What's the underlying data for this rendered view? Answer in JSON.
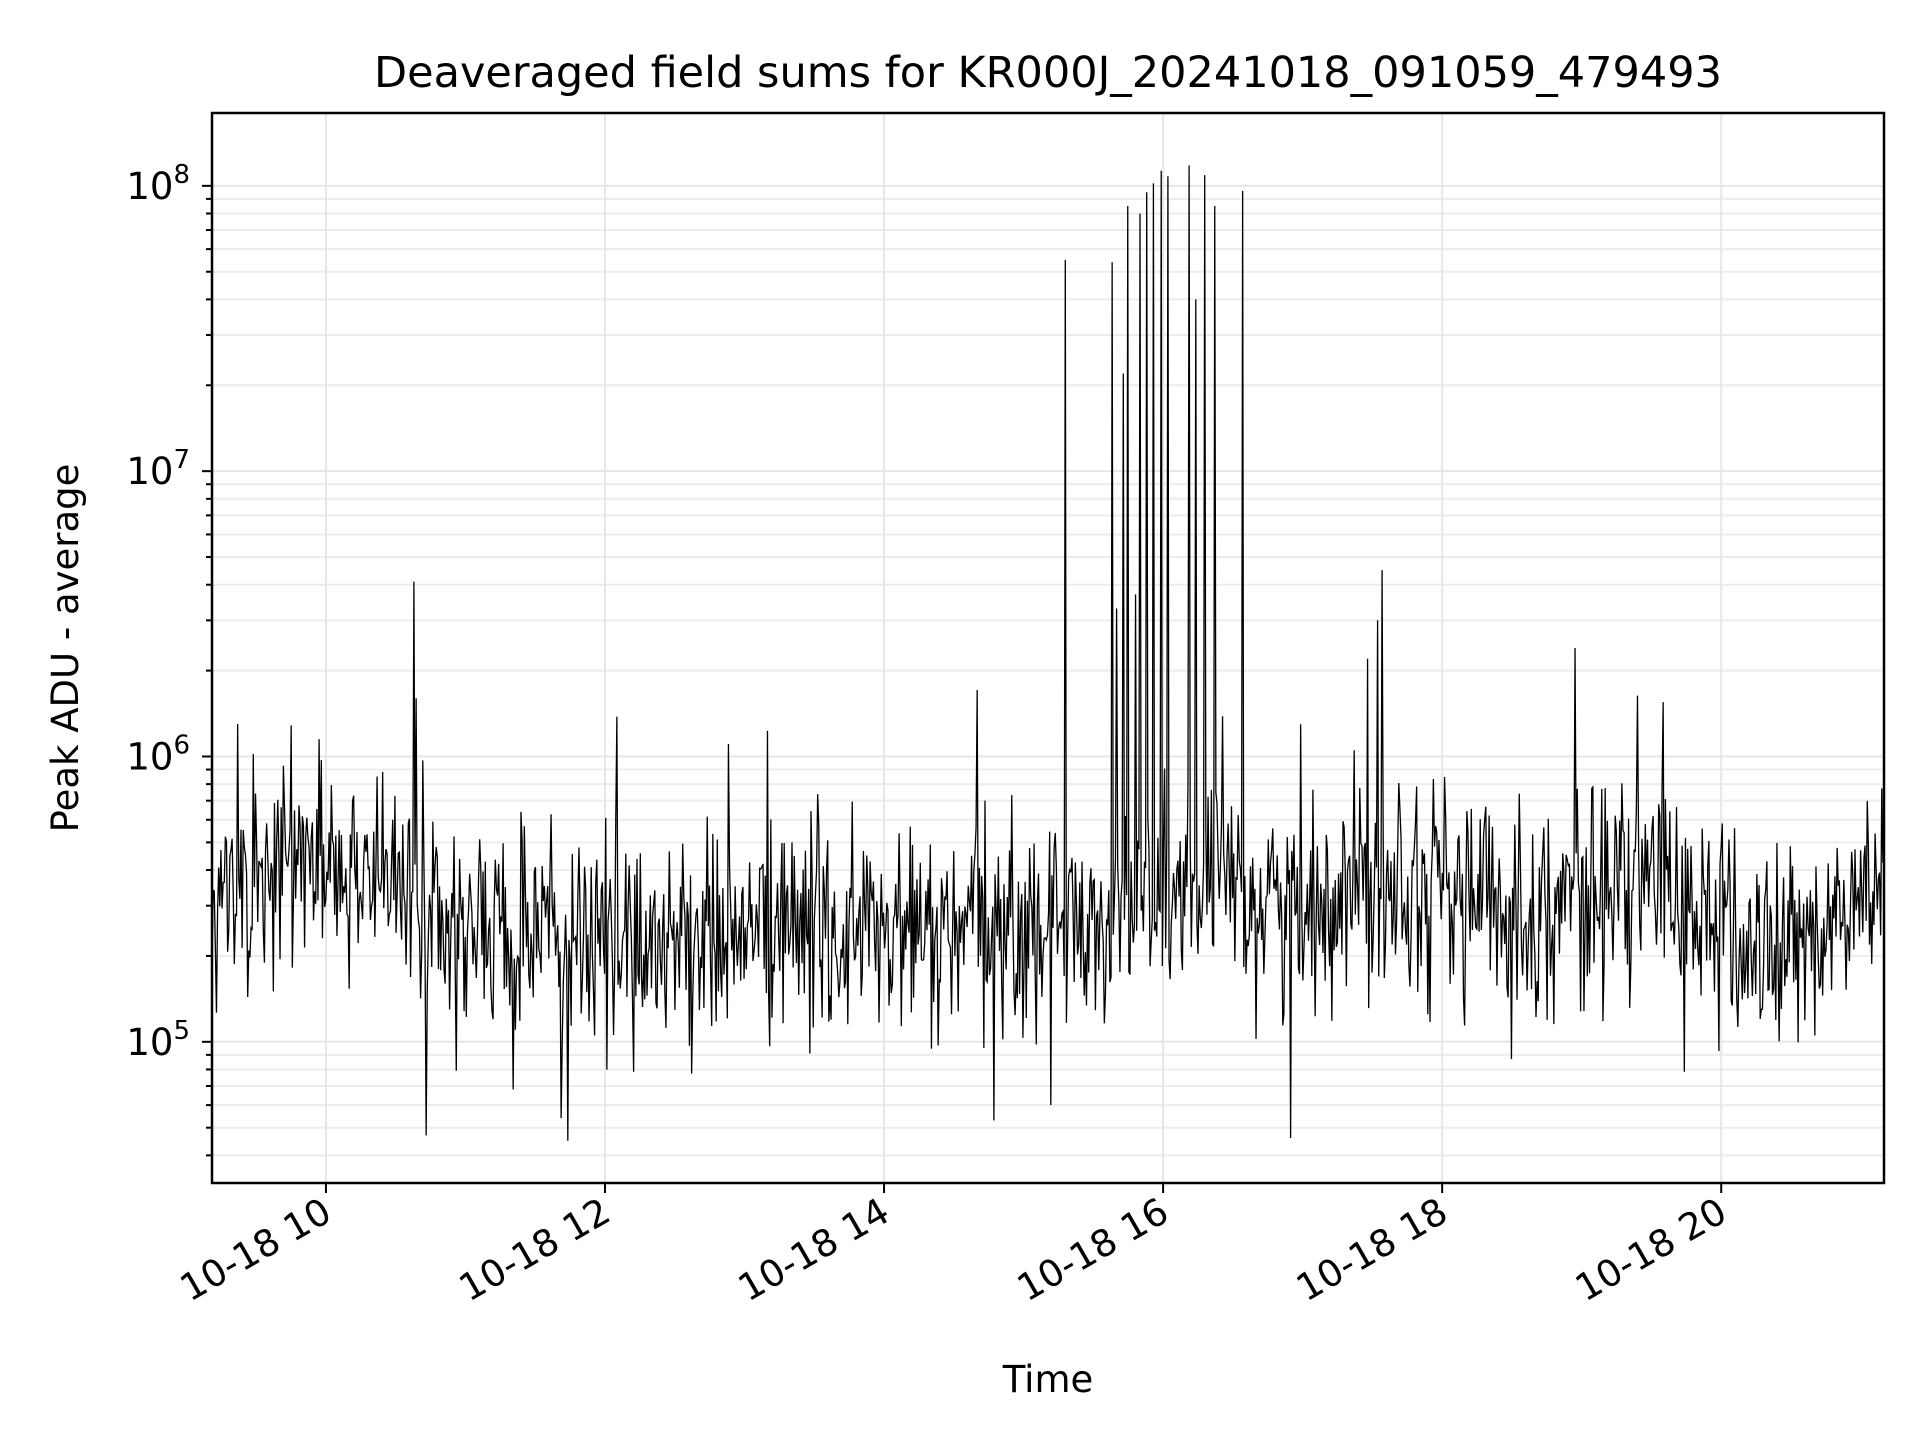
{
  "chart_data": {
    "type": "line",
    "title": "Deaveraged field sums for KR000J_20241018_091059_479493",
    "xlabel": "Time",
    "ylabel": "Peak ADU - average",
    "y_scale": "log",
    "grid": true,
    "grid_minor": true,
    "xlim": [
      "2024-10-18 09:11",
      "2024-10-18 21:10"
    ],
    "ylim": [
      32000,
      180000000
    ],
    "x_ticks": [
      {
        "value": "2024-10-18 10:00",
        "label": "10-18 10"
      },
      {
        "value": "2024-10-18 12:00",
        "label": "10-18 12"
      },
      {
        "value": "2024-10-18 14:00",
        "label": "10-18 14"
      },
      {
        "value": "2024-10-18 16:00",
        "label": "10-18 16"
      },
      {
        "value": "2024-10-18 18:00",
        "label": "10-18 18"
      },
      {
        "value": "2024-10-18 20:00",
        "label": "10-18 20"
      }
    ],
    "y_ticks": [
      {
        "value": 100000,
        "base": "10",
        "exp": "5"
      },
      {
        "value": 1000000,
        "base": "10",
        "exp": "6"
      },
      {
        "value": 10000000,
        "base": "10",
        "exp": "7"
      },
      {
        "value": 100000000,
        "base": "10",
        "exp": "8"
      }
    ],
    "line_color": "#000000",
    "series": [
      {
        "note_on_values": "values in ADU; baseline noise envelope follows this profile, spikes listed explicitly",
        "baseline_profile": {
          "x": [
            "2024-10-18 09:11",
            "2024-10-18 09:40",
            "2024-10-18 10:20",
            "2024-10-18 10:45",
            "2024-10-18 11:30",
            "2024-10-18 12:30",
            "2024-10-18 13:30",
            "2024-10-18 14:30",
            "2024-10-18 15:30",
            "2024-10-18 16:10",
            "2024-10-18 17:00",
            "2024-10-18 17:40",
            "2024-10-18 18:30",
            "2024-10-18 19:30",
            "2024-10-18 20:15",
            "2024-10-18 20:50",
            "2024-10-18 21:10"
          ],
          "median": [
            300000,
            420000,
            420000,
            260000,
            220000,
            230000,
            250000,
            230000,
            270000,
            350000,
            300000,
            400000,
            280000,
            380000,
            200000,
            250000,
            400000
          ]
        },
        "spikes": [
          {
            "x": "2024-10-18 09:22",
            "y": 1300000
          },
          {
            "x": "2024-10-18 09:57",
            "y": 1150000
          },
          {
            "x": "2024-10-18 10:38",
            "y": 4100000
          },
          {
            "x": "2024-10-18 10:39",
            "y": 1600000
          },
          {
            "x": "2024-10-18 10:43",
            "y": 47000
          },
          {
            "x": "2024-10-18 11:44",
            "y": 45000
          },
          {
            "x": "2024-10-18 12:05",
            "y": 1380000
          },
          {
            "x": "2024-10-18 13:10",
            "y": 1230000
          },
          {
            "x": "2024-10-18 14:40",
            "y": 1710000
          },
          {
            "x": "2024-10-18 14:47",
            "y": 53000
          },
          {
            "x": "2024-10-18 15:18",
            "y": 55000000
          },
          {
            "x": "2024-10-18 15:38",
            "y": 54000000
          },
          {
            "x": "2024-10-18 15:40",
            "y": 3300000
          },
          {
            "x": "2024-10-18 15:43",
            "y": 22000000
          },
          {
            "x": "2024-10-18 15:45",
            "y": 85000000
          },
          {
            "x": "2024-10-18 15:48",
            "y": 3700000
          },
          {
            "x": "2024-10-18 15:50",
            "y": 80000000
          },
          {
            "x": "2024-10-18 15:53",
            "y": 95000000
          },
          {
            "x": "2024-10-18 15:56",
            "y": 102000000
          },
          {
            "x": "2024-10-18 15:59",
            "y": 113000000
          },
          {
            "x": "2024-10-18 16:02",
            "y": 108000000
          },
          {
            "x": "2024-10-18 16:11",
            "y": 118000000
          },
          {
            "x": "2024-10-18 16:14",
            "y": 40000000
          },
          {
            "x": "2024-10-18 16:18",
            "y": 109000000
          },
          {
            "x": "2024-10-18 16:22",
            "y": 85000000
          },
          {
            "x": "2024-10-18 16:34",
            "y": 96000000
          },
          {
            "x": "2024-10-18 16:55",
            "y": 46000
          },
          {
            "x": "2024-10-18 17:28",
            "y": 2200000
          },
          {
            "x": "2024-10-18 17:32",
            "y": 3000000
          },
          {
            "x": "2024-10-18 17:34",
            "y": 4500000
          },
          {
            "x": "2024-10-18 18:57",
            "y": 2400000
          },
          {
            "x": "2024-10-18 19:35",
            "y": 1550000
          }
        ]
      }
    ]
  }
}
